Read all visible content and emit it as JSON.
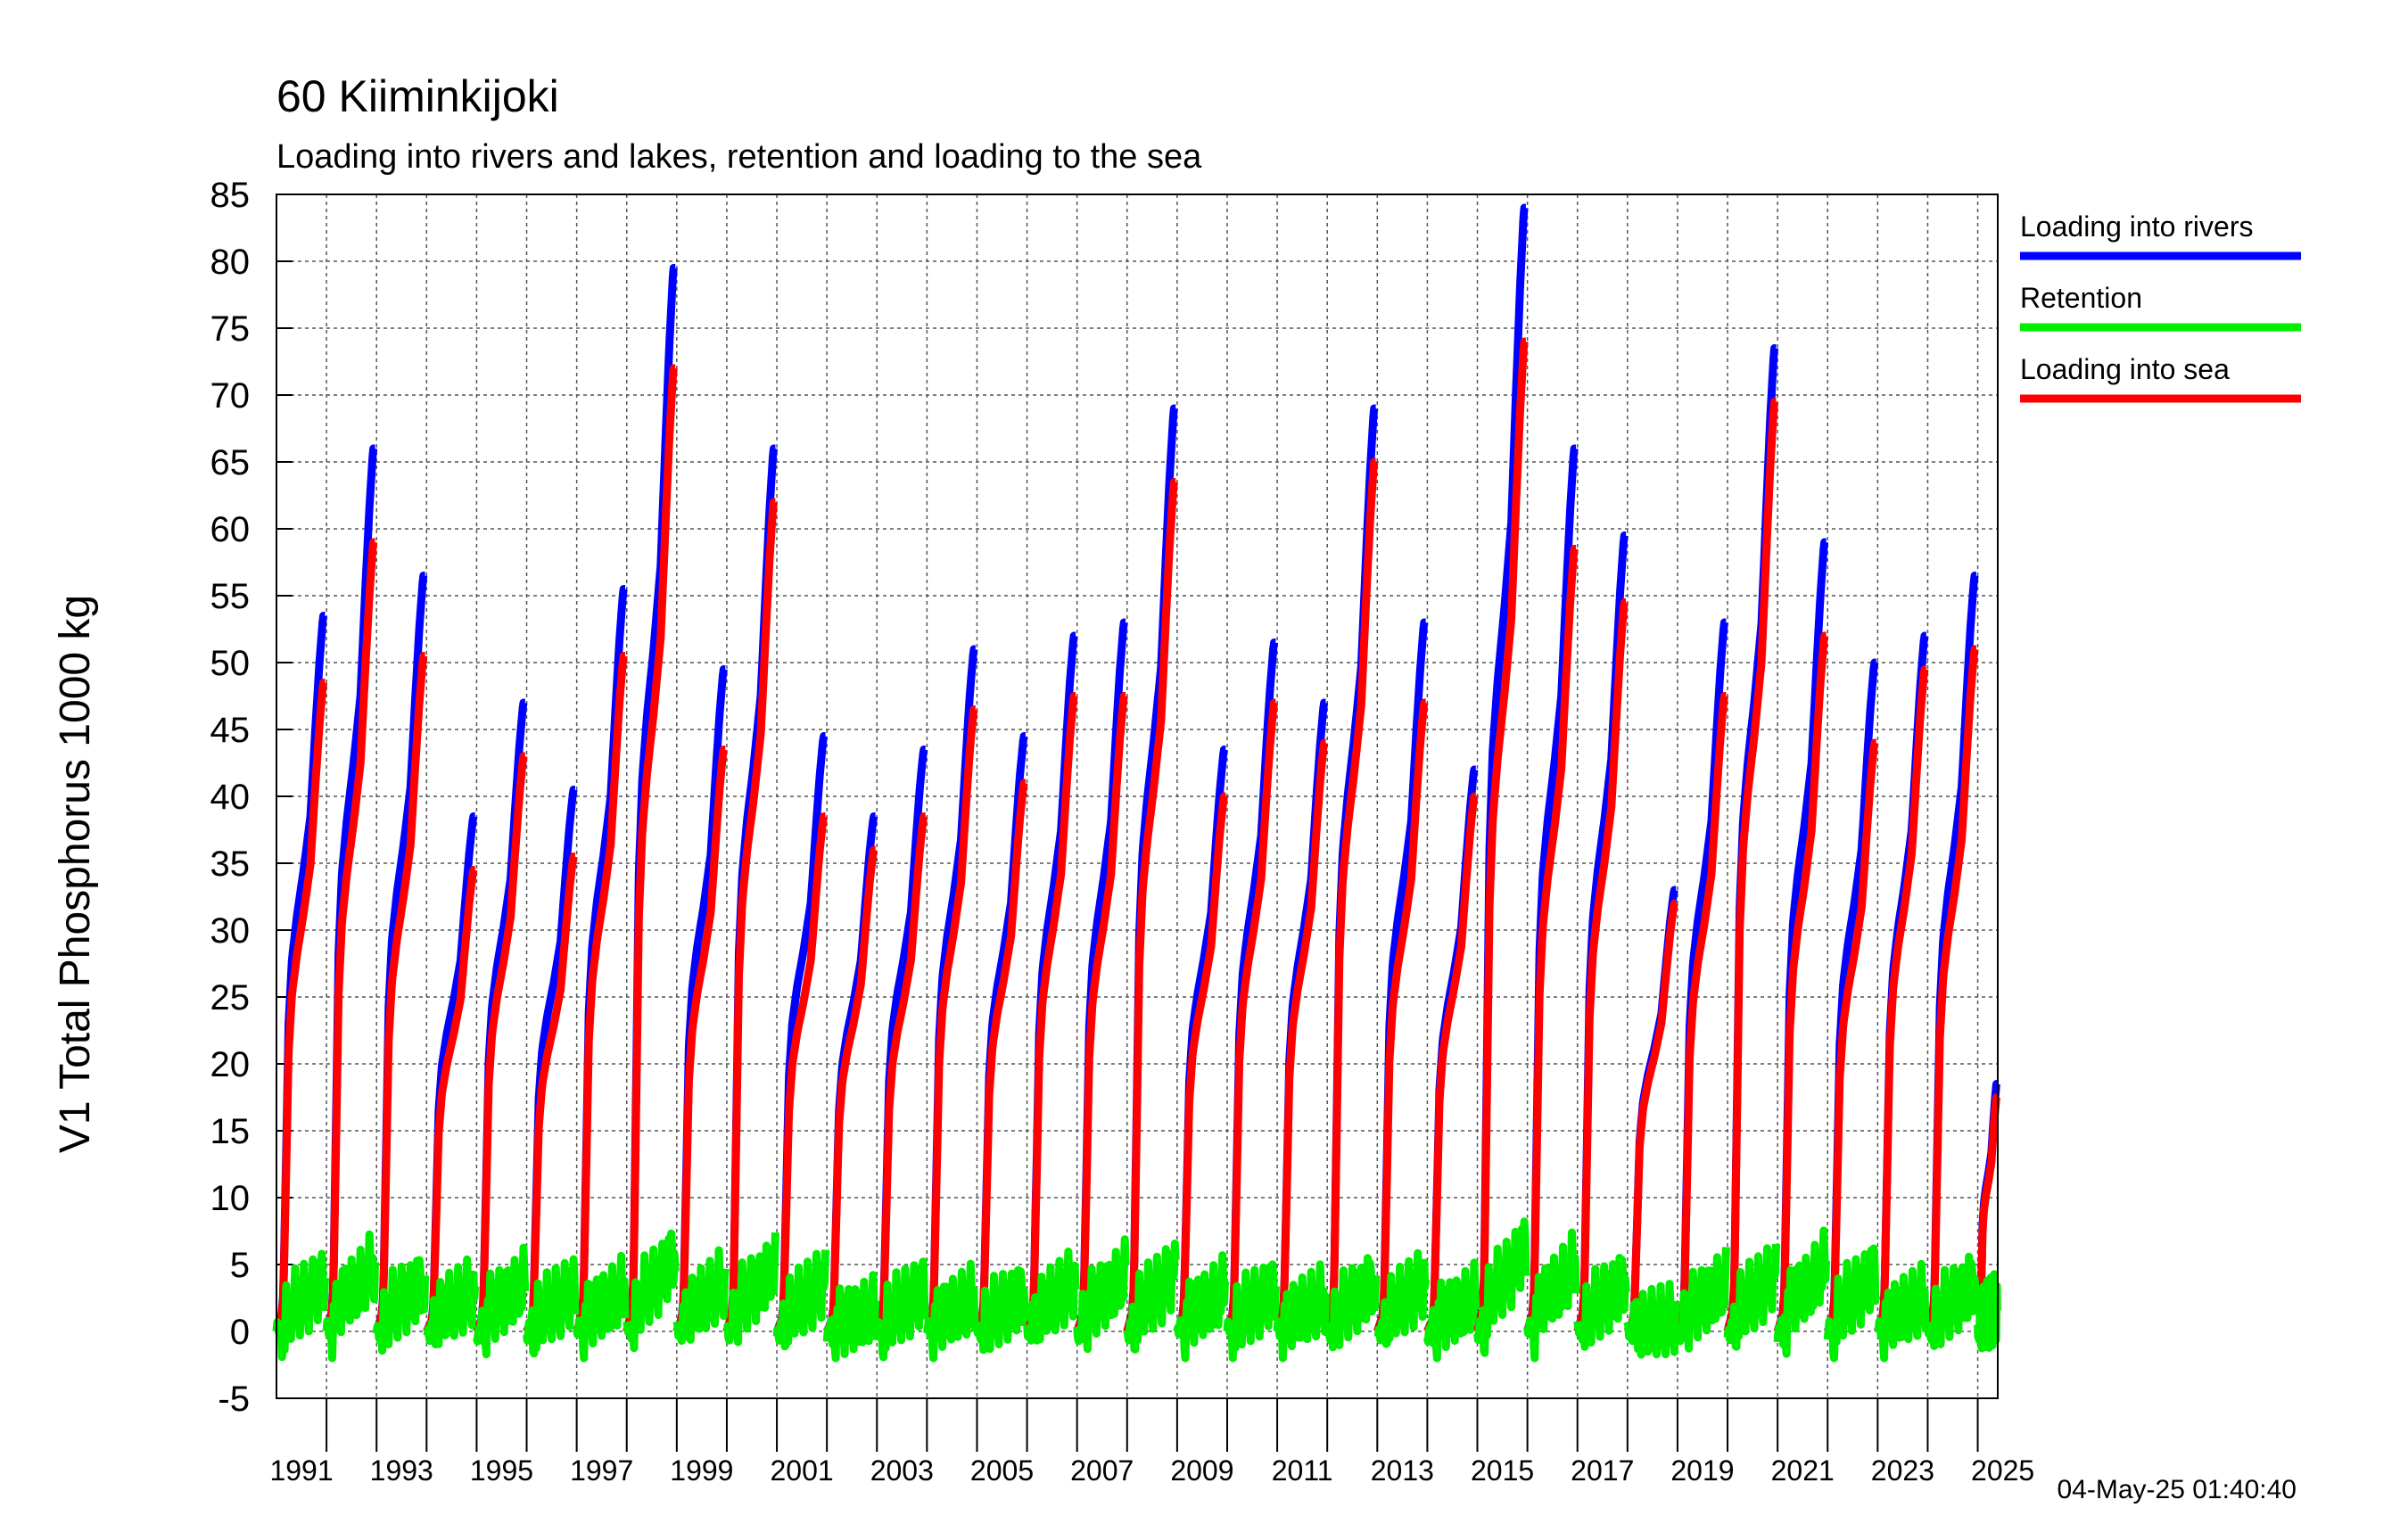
{
  "chart_data": {
    "type": "line",
    "title": "60 Kiiminkijoki",
    "subtitle": "Loading into rivers and lakes, retention and loading to the sea",
    "ylabel": "V1 Total Phosphorus 1000 kg",
    "xlabel": "",
    "ylim": [
      -5,
      85
    ],
    "yticks": [
      85,
      80,
      75,
      70,
      65,
      60,
      55,
      50,
      45,
      40,
      35,
      30,
      25,
      20,
      15,
      10,
      5,
      0,
      -5
    ],
    "xlim": [
      1990,
      2024.4
    ],
    "xtick_labels": [
      "1991",
      "1993",
      "1995",
      "1997",
      "1999",
      "2001",
      "2003",
      "2005",
      "2007",
      "2009",
      "2011",
      "2013",
      "2015",
      "2017",
      "2019",
      "2021",
      "2023",
      "2025"
    ],
    "grid": true,
    "legend_position": "right",
    "timestamp": "04-May-25 01:40:40",
    "series": [
      {
        "name": "Loading into rivers",
        "color": "#0000ff",
        "note_units": "annual cumulative total, reset each year",
        "annual_peaks": [
          53.5,
          66,
          56.5,
          38.5,
          47,
          40.5,
          55.5,
          79.5,
          49.5,
          66,
          44.5,
          38.5,
          43.5,
          51,
          44.5,
          52,
          53,
          69,
          43.5,
          51.5,
          47,
          69,
          53,
          42,
          84,
          66,
          59.5,
          33,
          53,
          73.5,
          59,
          50,
          52,
          56.5,
          18.5
        ]
      },
      {
        "name": "Retention",
        "color": "#00ee00",
        "note_units": "annual cumulative retention",
        "annual_peaks": [
          6,
          8,
          6,
          5,
          6,
          5,
          5,
          9,
          6,
          8,
          6,
          2.5,
          5,
          4,
          4.5,
          6,
          7,
          7,
          5,
          5,
          4,
          6,
          6,
          4,
          10,
          8,
          6,
          1.5,
          6,
          7,
          8,
          7,
          4,
          6,
          3
        ]
      },
      {
        "name": "Loading into sea",
        "color": "#ff0000",
        "note_units": "annual cumulative total, reset each year",
        "annual_peaks": [
          48.5,
          59,
          50.5,
          34.5,
          43,
          35.5,
          50.5,
          72,
          43.5,
          62,
          38.5,
          36,
          38.5,
          46.5,
          41,
          47.5,
          47.5,
          63.5,
          40,
          47,
          44,
          65,
          47,
          40,
          74,
          58.5,
          54.5,
          32,
          47.5,
          69.5,
          52,
          44,
          49.5,
          51,
          17.5
        ]
      }
    ]
  }
}
